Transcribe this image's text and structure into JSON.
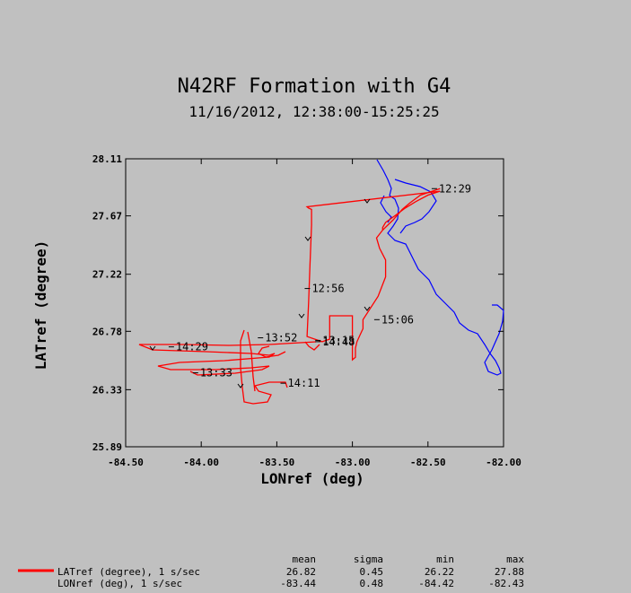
{
  "chart_data": {
    "type": "line",
    "title": "N42RF Formation with G4",
    "subtitle": "11/16/2012, 12:38:00-15:25:25",
    "xlabel": "LONref (deg)",
    "ylabel": "LATref (degree)",
    "xlim": [
      -84.5,
      -82.0
    ],
    "ylim": [
      25.89,
      28.11
    ],
    "xticks": [
      "-84.50",
      "-84.00",
      "-83.50",
      "-83.00",
      "-82.50",
      "-82.00"
    ],
    "yticks": [
      "25.89",
      "26.33",
      "26.78",
      "27.22",
      "27.67",
      "28.11"
    ],
    "grid": false,
    "colors": {
      "track": "#ff0000",
      "coast": "#0000ff",
      "background": "#c0c0c0"
    },
    "annotations": [
      {
        "text": "12:29",
        "lon": -82.44,
        "lat": 27.88
      },
      {
        "text": "12:56",
        "lon": -83.28,
        "lat": 27.11
      },
      {
        "text": "15:06",
        "lon": -82.82,
        "lat": 26.87
      },
      {
        "text": "13:52",
        "lon": -83.59,
        "lat": 26.73
      },
      {
        "text": "14:29",
        "lon": -84.18,
        "lat": 26.66
      },
      {
        "text": "13:15",
        "lon": -83.21,
        "lat": 26.71
      },
      {
        "text": "14:48",
        "lon": -83.21,
        "lat": 26.7
      },
      {
        "text": "13:33",
        "lon": -84.02,
        "lat": 26.46
      },
      {
        "text": "14:11",
        "lon": -83.44,
        "lat": 26.38
      }
    ],
    "series": [
      {
        "name": "LATref (degree), 1 s/sec",
        "stats": {
          "mean": "26.82",
          "sigma": "0.45",
          "min": "26.22",
          "max": "27.88"
        },
        "lon": [
          -82.42,
          -82.55,
          -82.62,
          -82.67,
          -82.73,
          -82.8,
          -82.84,
          -82.82,
          -82.78,
          -82.78,
          -82.83,
          -82.93,
          -82.93,
          -82.95,
          -82.97,
          -82.98,
          -82.98,
          -83.0,
          -83.0,
          -83.15,
          -83.15,
          -83.2,
          -83.3,
          -83.29,
          -83.28,
          -83.27,
          -83.27,
          -83.29,
          -83.3,
          -82.42,
          -82.5,
          -82.58,
          -82.65,
          -82.72,
          -82.78,
          -82.8,
          -82.8
        ],
        "lat": [
          27.88,
          27.83,
          27.77,
          27.72,
          27.64,
          27.56,
          27.5,
          27.42,
          27.33,
          27.2,
          27.05,
          26.87,
          26.8,
          26.75,
          26.7,
          26.65,
          26.58,
          26.56,
          26.9,
          26.9,
          26.72,
          26.7,
          26.74,
          27.0,
          27.3,
          27.6,
          27.72,
          27.73,
          27.74,
          27.86,
          27.83,
          27.78,
          27.73,
          27.67,
          27.62,
          27.58,
          27.56
        ]
      },
      {
        "name": "LONref (deg), 1 s/sec",
        "stats": {
          "mean": "-83.44",
          "sigma": "0.48",
          "min": "-84.42",
          "max": "-82.43"
        }
      }
    ],
    "stats_headers": [
      "mean",
      "sigma",
      "min",
      "max"
    ]
  }
}
